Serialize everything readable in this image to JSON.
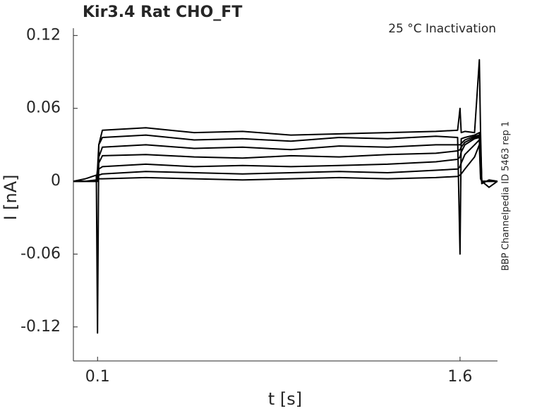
{
  "chart_data": {
    "type": "line",
    "title": "Kir3.4  Rat  CHO_FT",
    "annotation": "25 °C  Inactivation",
    "side_note": "BBP Channelpedia ID 5463 rep 1",
    "xlabel": "t [s]",
    "ylabel": "I [nA]",
    "xlim": [
      0,
      1.755
    ],
    "ylim": [
      -0.148,
      0.126
    ],
    "xticks": [
      0.1,
      1.6
    ],
    "yticks": [
      -0.12,
      -0.06,
      0,
      0.06,
      0.12
    ],
    "grid": false,
    "x": [
      0,
      0.05,
      0.095,
      0.1,
      0.105,
      0.12,
      0.3,
      0.5,
      0.7,
      0.9,
      1.1,
      1.3,
      1.5,
      1.59,
      1.6,
      1.605,
      1.62,
      1.66,
      1.68,
      1.685,
      1.69,
      1.72,
      1.755
    ],
    "series": [
      {
        "color": "#000000",
        "values": [
          0,
          0.002,
          0.005,
          -0.125,
          0.03,
          0.042,
          0.044,
          0.04,
          0.041,
          0.038,
          0.039,
          0.04,
          0.041,
          0.042,
          0.06,
          0.04,
          0.041,
          0.04,
          0.1,
          0.04,
          0,
          -0.005,
          0
        ]
      },
      {
        "color": "#000000",
        "values": [
          0,
          0,
          0.001,
          0.01,
          0.03,
          0.036,
          0.038,
          0.034,
          0.035,
          0.033,
          0.036,
          0.035,
          0.037,
          0.036,
          -0.06,
          0.035,
          0.036,
          0.038,
          0.04,
          0.03,
          -0.002,
          0.001,
          0
        ]
      },
      {
        "color": "#000000",
        "values": [
          0,
          0,
          0,
          0.002,
          0.02,
          0.028,
          0.03,
          0.027,
          0.028,
          0.026,
          0.029,
          0.028,
          0.03,
          0.03,
          0.03,
          0.031,
          0.034,
          0.037,
          0.038,
          0.03,
          0,
          0,
          0
        ]
      },
      {
        "color": "#000000",
        "values": [
          0,
          0,
          0,
          0,
          0.015,
          0.021,
          0.022,
          0.02,
          0.019,
          0.021,
          0.02,
          0.022,
          0.023,
          0.025,
          0.026,
          0.028,
          0.032,
          0.036,
          0.037,
          0.02,
          0,
          0,
          0
        ]
      },
      {
        "color": "#000000",
        "values": [
          0,
          0,
          0,
          0,
          0.01,
          0.012,
          0.014,
          0.012,
          0.013,
          0.012,
          0.013,
          0.014,
          0.016,
          0.018,
          0.02,
          0.024,
          0.03,
          0.035,
          0.036,
          0.01,
          0,
          0,
          0
        ]
      },
      {
        "color": "#000000",
        "values": [
          0,
          0,
          0,
          0,
          0.005,
          0.006,
          0.008,
          0.007,
          0.006,
          0.007,
          0.008,
          0.007,
          0.009,
          0.01,
          0.012,
          0.015,
          0.022,
          0.03,
          0.034,
          0.005,
          0,
          0,
          0
        ]
      },
      {
        "color": "#000000",
        "values": [
          0,
          0,
          0,
          0,
          0.002,
          0.002,
          0.003,
          0.002,
          0.001,
          0.002,
          0.003,
          0.002,
          0.003,
          0.004,
          0.005,
          0.006,
          0.01,
          0.02,
          0.03,
          0.002,
          0,
          0,
          0
        ]
      }
    ]
  }
}
